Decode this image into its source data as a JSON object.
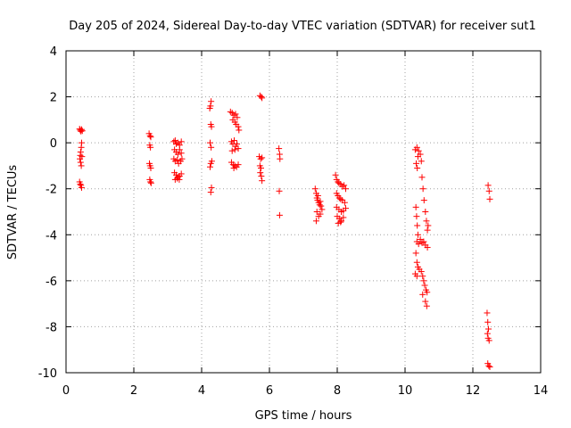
{
  "chart_data": {
    "type": "scatter",
    "title": "Day 205 of 2024, Sidereal Day-to-day VTEC variation (SDTVAR) for receiver sut1",
    "xlabel": "GPS time / hours",
    "ylabel": "SDTVAR / TECUs",
    "xlim": [
      0,
      14
    ],
    "ylim": [
      -10,
      4
    ],
    "xticks": [
      0,
      2,
      4,
      6,
      8,
      10,
      12,
      14
    ],
    "yticks": [
      -10,
      -8,
      -6,
      -4,
      -2,
      0,
      2,
      4
    ],
    "xtick_labels": [
      "0",
      "2",
      "4",
      "6",
      "8",
      "10",
      "12",
      "14"
    ],
    "ytick_labels": [
      "-10",
      "-8",
      "-6",
      "-4",
      "-2",
      "0",
      "2",
      "4"
    ],
    "grid": true,
    "marker": "+",
    "color": "#ff0000",
    "series": [
      {
        "name": "sut1",
        "points": [
          [
            0.4,
            0.6
          ],
          [
            0.42,
            0.55
          ],
          [
            0.44,
            0.5
          ],
          [
            0.46,
            0.58
          ],
          [
            0.48,
            0.52
          ],
          [
            0.46,
            0.0
          ],
          [
            0.45,
            -0.2
          ],
          [
            0.43,
            -0.4
          ],
          [
            0.42,
            -0.55
          ],
          [
            0.41,
            -0.7
          ],
          [
            0.43,
            -0.85
          ],
          [
            0.45,
            -1.0
          ],
          [
            0.47,
            -0.6
          ],
          [
            0.4,
            -1.7
          ],
          [
            0.42,
            -1.8
          ],
          [
            0.44,
            -1.85
          ],
          [
            0.46,
            -1.95
          ],
          [
            2.45,
            0.4
          ],
          [
            2.48,
            0.3
          ],
          [
            2.5,
            0.25
          ],
          [
            2.47,
            -0.1
          ],
          [
            2.49,
            -0.2
          ],
          [
            2.46,
            -0.9
          ],
          [
            2.48,
            -1.0
          ],
          [
            2.5,
            -1.1
          ],
          [
            2.47,
            -1.6
          ],
          [
            2.49,
            -1.7
          ],
          [
            2.51,
            -1.75
          ],
          [
            3.18,
            0.05
          ],
          [
            3.22,
            0.1
          ],
          [
            3.25,
            -0.05
          ],
          [
            3.3,
            0.0
          ],
          [
            3.35,
            -0.1
          ],
          [
            3.4,
            0.05
          ],
          [
            3.2,
            -0.3
          ],
          [
            3.25,
            -0.4
          ],
          [
            3.3,
            -0.5
          ],
          [
            3.35,
            -0.3
          ],
          [
            3.4,
            -0.45
          ],
          [
            3.18,
            -0.7
          ],
          [
            3.22,
            -0.8
          ],
          [
            3.28,
            -0.75
          ],
          [
            3.32,
            -0.9
          ],
          [
            3.38,
            -0.8
          ],
          [
            3.42,
            -0.7
          ],
          [
            3.2,
            -1.3
          ],
          [
            3.25,
            -1.4
          ],
          [
            3.3,
            -1.5
          ],
          [
            3.35,
            -1.45
          ],
          [
            3.4,
            -1.35
          ],
          [
            3.22,
            -1.6
          ],
          [
            3.28,
            -1.55
          ],
          [
            3.34,
            -1.6
          ],
          [
            4.28,
            1.8
          ],
          [
            4.26,
            1.6
          ],
          [
            4.24,
            1.5
          ],
          [
            4.27,
            0.8
          ],
          [
            4.29,
            0.7
          ],
          [
            4.25,
            0.0
          ],
          [
            4.28,
            -0.2
          ],
          [
            4.3,
            -0.8
          ],
          [
            4.27,
            -0.9
          ],
          [
            4.25,
            -1.05
          ],
          [
            4.29,
            -1.95
          ],
          [
            4.27,
            -2.15
          ],
          [
            4.85,
            1.35
          ],
          [
            4.9,
            1.3
          ],
          [
            4.95,
            1.2
          ],
          [
            5.0,
            1.25
          ],
          [
            5.05,
            1.1
          ],
          [
            4.92,
            1.0
          ],
          [
            4.98,
            0.9
          ],
          [
            5.02,
            0.8
          ],
          [
            5.08,
            0.7
          ],
          [
            5.1,
            0.55
          ],
          [
            4.88,
            0.05
          ],
          [
            4.92,
            -0.05
          ],
          [
            4.96,
            0.1
          ],
          [
            5.0,
            -0.15
          ],
          [
            5.04,
            -0.05
          ],
          [
            5.08,
            -0.25
          ],
          [
            4.9,
            -0.35
          ],
          [
            4.98,
            -0.3
          ],
          [
            4.88,
            -0.85
          ],
          [
            4.93,
            -0.95
          ],
          [
            4.98,
            -1.0
          ],
          [
            5.03,
            -1.05
          ],
          [
            5.08,
            -0.95
          ],
          [
            4.95,
            -1.1
          ],
          [
            5.72,
            2.05
          ],
          [
            5.76,
            2.0
          ],
          [
            5.78,
            1.95
          ],
          [
            5.7,
            -0.6
          ],
          [
            5.74,
            -0.7
          ],
          [
            5.78,
            -0.65
          ],
          [
            5.72,
            -1.0
          ],
          [
            5.75,
            -1.1
          ],
          [
            5.73,
            -1.3
          ],
          [
            5.76,
            -1.45
          ],
          [
            5.78,
            -1.65
          ],
          [
            6.28,
            -0.25
          ],
          [
            6.3,
            -0.5
          ],
          [
            6.31,
            -0.7
          ],
          [
            6.29,
            -2.1
          ],
          [
            6.3,
            -3.15
          ],
          [
            7.35,
            -2.0
          ],
          [
            7.38,
            -2.2
          ],
          [
            7.4,
            -2.4
          ],
          [
            7.42,
            -2.5
          ],
          [
            7.45,
            -2.6
          ],
          [
            7.48,
            -2.7
          ],
          [
            7.5,
            -2.55
          ],
          [
            7.52,
            -2.75
          ],
          [
            7.55,
            -2.9
          ],
          [
            7.4,
            -3.0
          ],
          [
            7.45,
            -3.2
          ],
          [
            7.38,
            -3.4
          ],
          [
            7.5,
            -3.1
          ],
          [
            7.43,
            -2.3
          ],
          [
            7.95,
            -1.4
          ],
          [
            7.98,
            -1.6
          ],
          [
            8.02,
            -1.7
          ],
          [
            8.05,
            -1.75
          ],
          [
            8.1,
            -1.8
          ],
          [
            8.15,
            -1.9
          ],
          [
            8.2,
            -1.85
          ],
          [
            8.25,
            -2.0
          ],
          [
            7.98,
            -2.2
          ],
          [
            8.02,
            -2.3
          ],
          [
            8.06,
            -2.4
          ],
          [
            8.1,
            -2.45
          ],
          [
            8.15,
            -2.5
          ],
          [
            8.22,
            -2.6
          ],
          [
            7.98,
            -2.8
          ],
          [
            8.05,
            -2.9
          ],
          [
            8.12,
            -3.0
          ],
          [
            8.18,
            -2.95
          ],
          [
            8.25,
            -2.85
          ],
          [
            8.0,
            -3.2
          ],
          [
            8.06,
            -3.3
          ],
          [
            8.12,
            -3.4
          ],
          [
            8.18,
            -3.25
          ],
          [
            8.03,
            -3.5
          ],
          [
            8.1,
            -3.45
          ],
          [
            10.3,
            -0.3
          ],
          [
            10.35,
            -0.2
          ],
          [
            10.4,
            -0.35
          ],
          [
            10.45,
            -0.5
          ],
          [
            10.38,
            -0.6
          ],
          [
            10.33,
            -0.9
          ],
          [
            10.36,
            -1.1
          ],
          [
            10.32,
            -2.8
          ],
          [
            10.34,
            -3.2
          ],
          [
            10.36,
            -3.6
          ],
          [
            10.38,
            -4.0
          ],
          [
            10.35,
            -4.3
          ],
          [
            10.4,
            -4.4
          ],
          [
            10.45,
            -4.2
          ],
          [
            10.5,
            -4.35
          ],
          [
            10.55,
            -4.3
          ],
          [
            10.6,
            -4.45
          ],
          [
            10.66,
            -4.55
          ],
          [
            10.32,
            -4.8
          ],
          [
            10.35,
            -5.2
          ],
          [
            10.38,
            -5.4
          ],
          [
            10.42,
            -5.5
          ],
          [
            10.48,
            -5.6
          ],
          [
            10.52,
            -5.8
          ],
          [
            10.55,
            -6.0
          ],
          [
            10.58,
            -6.2
          ],
          [
            10.62,
            -6.4
          ],
          [
            10.52,
            -6.6
          ],
          [
            10.3,
            -5.7
          ],
          [
            10.35,
            -5.8
          ],
          [
            10.6,
            -6.9
          ],
          [
            10.64,
            -7.1
          ],
          [
            10.48,
            -0.8
          ],
          [
            10.5,
            -1.5
          ],
          [
            10.53,
            -2.0
          ],
          [
            10.56,
            -2.5
          ],
          [
            10.6,
            -3.0
          ],
          [
            10.63,
            -3.4
          ],
          [
            10.66,
            -3.8
          ],
          [
            10.68,
            -3.6
          ],
          [
            10.65,
            -6.5
          ],
          [
            12.45,
            -1.85
          ],
          [
            12.48,
            -2.1
          ],
          [
            12.5,
            -2.45
          ],
          [
            12.42,
            -7.4
          ],
          [
            12.44,
            -7.8
          ],
          [
            12.46,
            -8.1
          ],
          [
            12.43,
            -8.3
          ],
          [
            12.45,
            -8.5
          ],
          [
            12.48,
            -8.6
          ],
          [
            12.44,
            -9.6
          ],
          [
            12.47,
            -9.7
          ],
          [
            12.5,
            -9.75
          ]
        ]
      }
    ]
  }
}
